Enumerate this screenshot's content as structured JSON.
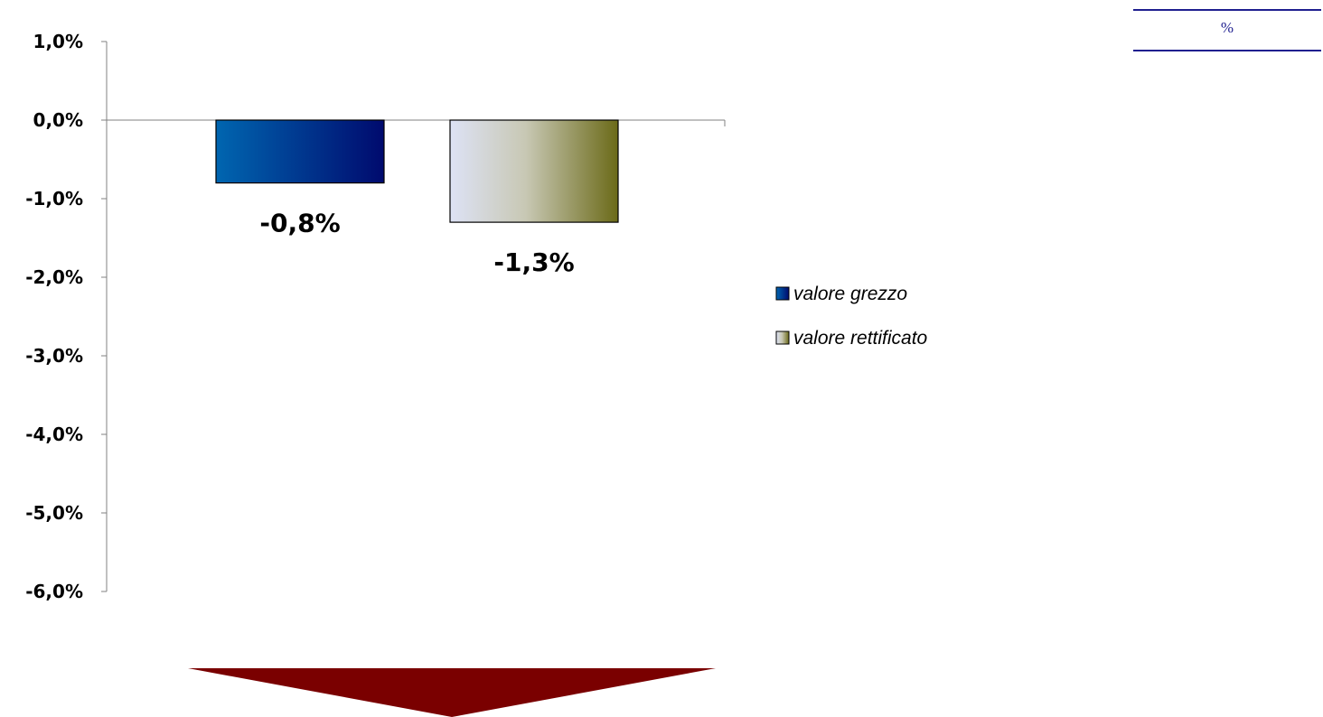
{
  "unit_label": "%",
  "chart_data": {
    "type": "bar",
    "categories": [
      ""
    ],
    "series": [
      {
        "name": "valore grezzo",
        "values": [
          -0.8
        ],
        "label": "-0,8%"
      },
      {
        "name": "valore rettificato",
        "values": [
          -1.3
        ],
        "label": "-1,3%"
      }
    ],
    "ylim": [
      -6,
      1
    ],
    "yticks": [
      1,
      0,
      -1,
      -2,
      -3,
      -4,
      -5,
      -6
    ],
    "ytick_labels": [
      "1,0%",
      "0,0%",
      "-1,0%",
      "-2,0%",
      "-3,0%",
      "-4,0%",
      "-5,0%",
      "-6,0%"
    ],
    "legend_position": "right",
    "grid": false,
    "colors": {
      "valore grezzo": {
        "from": "#0066b0",
        "to": "#000a6e"
      },
      "valore rettificato": {
        "from": "#dde2f5",
        "via": "#c8c8b4",
        "to": "#6b6a18"
      }
    },
    "arrow_color": "#7a0000"
  }
}
